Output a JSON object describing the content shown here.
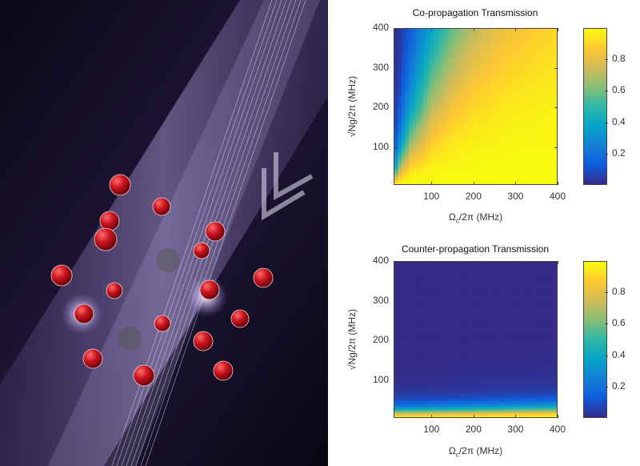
{
  "colormap": [
    "#352A87",
    "#0F5CDD",
    "#1481D6",
    "#06A4CA",
    "#2EB7A4",
    "#87BF77",
    "#D1BB59",
    "#FEC832",
    "#F9FB0E"
  ],
  "chart_data": [
    {
      "type": "heatmap",
      "title": "Co-propagation Transmission",
      "xlabel_main": "Ω",
      "xlabel_sub": "c",
      "xlabel_rest": "/2π (MHz)",
      "ylabel": "√Ng/2π (MHz)",
      "xlim": [
        10,
        400
      ],
      "ylim": [
        5,
        400
      ],
      "xticks": [
        "100",
        "200",
        "300",
        "400"
      ],
      "yticks": [
        "100",
        "200",
        "300",
        "400"
      ],
      "colorbar": {
        "range": [
          0,
          1
        ],
        "ticks": [
          "0.2",
          "0.4",
          "0.6",
          "0.8"
        ]
      },
      "x": [
        10,
        25,
        50,
        100,
        150,
        200,
        250,
        300,
        350,
        400
      ],
      "y": [
        5,
        25,
        50,
        100,
        150,
        200,
        250,
        300,
        350,
        400
      ],
      "z": [
        [
          0.98,
          1,
          1,
          1,
          1,
          1,
          1,
          1,
          1,
          1
        ],
        [
          0.62,
          0.91,
          0.98,
          0.99,
          1,
          1,
          1,
          1,
          1,
          1
        ],
        [
          0.29,
          0.71,
          0.91,
          0.98,
          0.99,
          0.99,
          1,
          1,
          1,
          1
        ],
        [
          0.09,
          0.38,
          0.71,
          0.91,
          0.96,
          0.98,
          0.98,
          0.99,
          0.99,
          0.99
        ],
        [
          0.04,
          0.22,
          0.53,
          0.82,
          0.91,
          0.95,
          0.97,
          0.98,
          0.98,
          0.99
        ],
        [
          0.02,
          0.14,
          0.38,
          0.71,
          0.85,
          0.91,
          0.94,
          0.96,
          0.97,
          0.98
        ],
        [
          0.016,
          0.09,
          0.29,
          0.62,
          0.78,
          0.87,
          0.91,
          0.94,
          0.95,
          0.96
        ],
        [
          0.01,
          0.06,
          0.22,
          0.53,
          0.71,
          0.82,
          0.87,
          0.91,
          0.93,
          0.95
        ],
        [
          0.01,
          0.05,
          0.17,
          0.45,
          0.65,
          0.77,
          0.84,
          0.88,
          0.91,
          0.93
        ],
        [
          0.01,
          0.04,
          0.14,
          0.38,
          0.58,
          0.71,
          0.8,
          0.85,
          0.88,
          0.91
        ]
      ]
    },
    {
      "type": "heatmap",
      "title": "Counter-propagation Transmission",
      "xlabel_main": "Ω",
      "xlabel_sub": "c",
      "xlabel_rest": "/2π (MHz)",
      "ylabel": "√Ng/2π (MHz)",
      "xlim": [
        10,
        400
      ],
      "ylim": [
        5,
        400
      ],
      "xticks": [
        "100",
        "200",
        "300",
        "400"
      ],
      "yticks": [
        "100",
        "200",
        "300",
        "400"
      ],
      "colorbar": {
        "range": [
          0,
          1
        ],
        "ticks": [
          "0.2",
          "0.4",
          "0.6",
          "0.8"
        ]
      },
      "x": [
        10,
        100,
        200,
        300,
        400
      ],
      "y": [
        5,
        15,
        25,
        35,
        50,
        65,
        80,
        100,
        150,
        200,
        300,
        400
      ],
      "z": [
        [
          0.99,
          0.99,
          0.99,
          0.99,
          0.99
        ],
        [
          0.76,
          0.79,
          0.82,
          0.85,
          0.87
        ],
        [
          0.41,
          0.45,
          0.5,
          0.54,
          0.58
        ],
        [
          0.2,
          0.23,
          0.27,
          0.3,
          0.34
        ],
        [
          0.08,
          0.09,
          0.11,
          0.13,
          0.15
        ],
        [
          0.04,
          0.05,
          0.05,
          0.06,
          0.07
        ],
        [
          0.02,
          0.02,
          0.03,
          0.04,
          0.04
        ],
        [
          0.01,
          0.01,
          0.02,
          0.02,
          0.02
        ],
        [
          0,
          0,
          0,
          0,
          0.01
        ],
        [
          0,
          0,
          0,
          0,
          0
        ],
        [
          0,
          0,
          0,
          0,
          0
        ],
        [
          0,
          0,
          0,
          0,
          0
        ]
      ]
    }
  ]
}
